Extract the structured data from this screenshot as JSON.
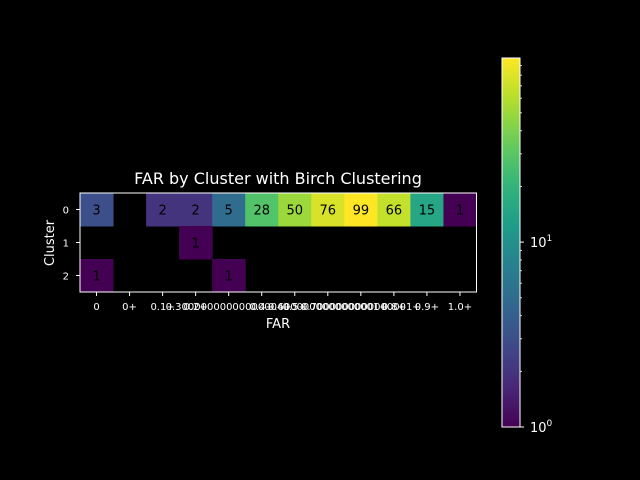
{
  "chart_data": {
    "type": "heatmap",
    "title": "FAR by Cluster with Birch Clustering",
    "xlabel": "FAR",
    "ylabel": "Cluster",
    "x_tick_labels": [
      "0",
      "0+",
      "0.1+",
      "0.2+",
      "0.30000000000000004+",
      "0.4+",
      "0.5+",
      "0.6000000000000001+",
      "0.7000000000000001+",
      "0.8+",
      "0.9+",
      "1.0+"
    ],
    "y_tick_labels": [
      "0",
      "1",
      "2"
    ],
    "rows": [
      {
        "cluster": "0",
        "values": [
          3,
          null,
          2,
          2,
          5,
          28,
          50,
          76,
          99,
          66,
          15,
          1
        ]
      },
      {
        "cluster": "1",
        "values": [
          null,
          null,
          null,
          1,
          null,
          null,
          null,
          null,
          null,
          null,
          null,
          null
        ]
      },
      {
        "cluster": "2",
        "values": [
          1,
          null,
          null,
          null,
          1,
          null,
          null,
          null,
          null,
          null,
          null,
          null
        ]
      }
    ],
    "colorbar": {
      "scale": "log",
      "colormap": "viridis",
      "range": [
        1,
        99
      ],
      "tick_labels": [
        {
          "value": 1,
          "base": "10",
          "exp": "0"
        },
        {
          "value": 10,
          "base": "10",
          "exp": "1"
        }
      ]
    },
    "colors": {
      "background": "#000000",
      "foreground": "#ffffff",
      "empty_cell": "#000000"
    }
  }
}
